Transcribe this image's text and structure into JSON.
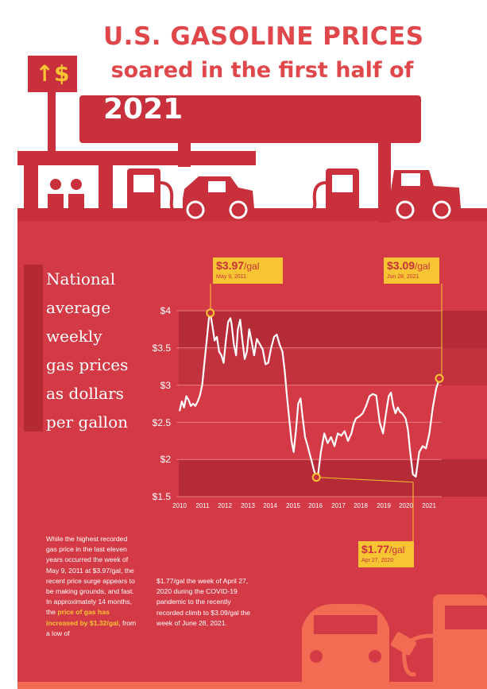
{
  "title": {
    "line1": "U.S. GASOLINE PRICES",
    "line2": "soared in the first half of",
    "year": "2021"
  },
  "sign": {
    "label": "↑$"
  },
  "legend": {
    "lines": [
      "National",
      "average",
      "weekly",
      "gas prices",
      "as dollars",
      "per gallon"
    ]
  },
  "callouts": [
    {
      "value": "$3.97",
      "unit": "/gal",
      "date": "May 9, 2011"
    },
    {
      "value": "$3.09",
      "unit": "/gal",
      "date": "Jun 28, 2021"
    },
    {
      "value": "$1.77",
      "unit": "/gal",
      "date": "Apr 27, 2020"
    }
  ],
  "text_left": {
    "pre": "While the highest recorded gas price in the last eleven years occurred the week of May 9, 2011 at $3.97/gal, the recent price surge appears to be making grounds, and fast. In approximately 14 months, the ",
    "highlight": "price of gas has increased by $1.32/gal",
    "post": ", from a low of"
  },
  "text_right": "$1.77/gal the week of April 27, 2020 during the COVID-19 pandemic to the recently recorded climb to $3.09/gal the week of June 28, 2021.",
  "colors": {
    "background": "#d43a46",
    "band": "#b52c38",
    "accent": "#f7c533",
    "title": "#e0474b",
    "illustration": "#c8303c",
    "car_orange": "#f26b53"
  },
  "chart_data": {
    "type": "line",
    "title": "",
    "xlabel": "",
    "ylabel": "",
    "y_tick_labels": [
      "$4",
      "$3.5",
      "$3",
      "$2.5",
      "$2",
      "$1.5"
    ],
    "y_ticks": [
      4,
      3.5,
      3,
      2.5,
      2,
      1.5
    ],
    "x_tick_labels": [
      "2010",
      "2011",
      "2012",
      "2013",
      "2014",
      "2015",
      "2016",
      "2017",
      "2018",
      "2019",
      "2020",
      "2021"
    ],
    "x_ticks": [
      2010,
      2011,
      2012,
      2013,
      2014,
      2015,
      2016,
      2017,
      2018,
      2019,
      2020,
      2021
    ],
    "xlim": [
      2010,
      2021.7
    ],
    "ylim": [
      1.5,
      4.0
    ],
    "shaded_bands": [
      [
        3.5,
        4.0
      ],
      [
        3.0,
        3.3
      ],
      [
        1.5,
        2.0
      ]
    ],
    "series": [
      {
        "x": [
          2010.0,
          2010.1,
          2010.2,
          2010.3,
          2010.4,
          2010.5,
          2010.6,
          2010.7,
          2010.8,
          2010.9,
          2011.0,
          2011.1,
          2011.2,
          2011.3,
          2011.36,
          2011.45,
          2011.55,
          2011.65,
          2011.75,
          2011.85,
          2011.95,
          2012.05,
          2012.15,
          2012.25,
          2012.3,
          2012.4,
          2012.5,
          2012.58,
          2012.68,
          2012.78,
          2012.88,
          2012.98,
          2013.08,
          2013.18,
          2013.3,
          2013.42,
          2013.55,
          2013.68,
          2013.8,
          2013.92,
          2014.05,
          2014.18,
          2014.3,
          2014.42,
          2014.55,
          2014.65,
          2014.75,
          2014.85,
          2014.95,
          2015.05,
          2015.15,
          2015.25,
          2015.35,
          2015.45,
          2015.55,
          2015.65,
          2015.75,
          2015.85,
          2015.95,
          2016.05,
          2016.12,
          2016.25,
          2016.4,
          2016.55,
          2016.7,
          2016.85,
          2017.0,
          2017.15,
          2017.3,
          2017.45,
          2017.6,
          2017.7,
          2017.8,
          2017.95,
          2018.1,
          2018.25,
          2018.4,
          2018.55,
          2018.7,
          2018.85,
          2019.0,
          2019.12,
          2019.25,
          2019.35,
          2019.45,
          2019.55,
          2019.65,
          2019.75,
          2019.85,
          2020.0,
          2020.1,
          2020.2,
          2020.32,
          2020.45,
          2020.6,
          2020.75,
          2020.9,
          2021.05,
          2021.2,
          2021.35,
          2021.49
        ],
        "y": [
          2.65,
          2.78,
          2.7,
          2.85,
          2.8,
          2.72,
          2.75,
          2.72,
          2.78,
          2.86,
          3.0,
          3.3,
          3.6,
          3.9,
          3.97,
          3.8,
          3.6,
          3.65,
          3.45,
          3.4,
          3.3,
          3.6,
          3.85,
          3.9,
          3.82,
          3.55,
          3.4,
          3.75,
          3.88,
          3.6,
          3.35,
          3.45,
          3.75,
          3.6,
          3.4,
          3.62,
          3.55,
          3.48,
          3.28,
          3.3,
          3.5,
          3.65,
          3.68,
          3.55,
          3.45,
          3.2,
          2.85,
          2.55,
          2.25,
          2.1,
          2.4,
          2.75,
          2.82,
          2.55,
          2.3,
          2.2,
          2.08,
          1.97,
          1.85,
          1.76,
          1.78,
          2.1,
          2.35,
          2.22,
          2.3,
          2.18,
          2.35,
          2.32,
          2.38,
          2.25,
          2.35,
          2.48,
          2.55,
          2.58,
          2.62,
          2.72,
          2.85,
          2.88,
          2.86,
          2.5,
          2.35,
          2.6,
          2.85,
          2.9,
          2.72,
          2.62,
          2.7,
          2.64,
          2.62,
          2.55,
          2.4,
          2.1,
          1.8,
          1.77,
          2.1,
          2.18,
          2.15,
          2.35,
          2.7,
          2.95,
          3.09
        ]
      }
    ]
  }
}
